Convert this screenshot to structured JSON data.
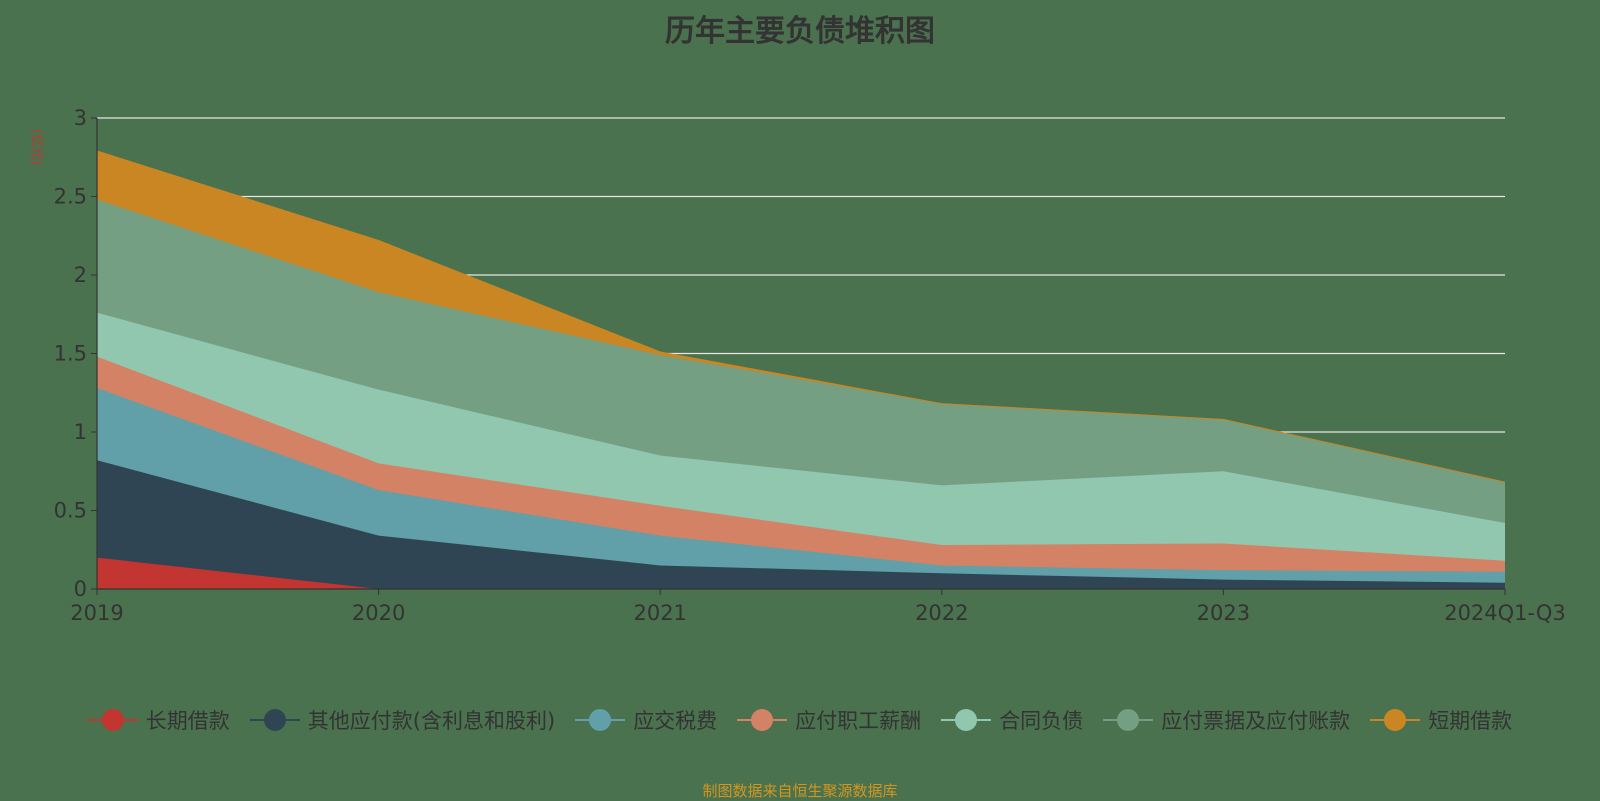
{
  "chart_data": {
    "type": "area",
    "stacked": true,
    "title": "历年主要负债堆积图",
    "ylabel": "(亿元)",
    "xlabel": "",
    "categories": [
      "2019",
      "2020",
      "2021",
      "2022",
      "2023",
      "2024Q1-Q3"
    ],
    "ylim": [
      0,
      3
    ],
    "yticks": [
      "0",
      "0.5",
      "1",
      "1.5",
      "2",
      "2.5",
      "3"
    ],
    "grid": true,
    "legend_position": "bottom",
    "series": [
      {
        "name": "长期借款",
        "color": "#c23531",
        "values": [
          0.2,
          0,
          0,
          0,
          0,
          0
        ]
      },
      {
        "name": "其他应付款(含利息和股利)",
        "color": "#2f4554",
        "values": [
          0.62,
          0.34,
          0.15,
          0.1,
          0.06,
          0.04
        ]
      },
      {
        "name": "应交税费",
        "color": "#61a0a8",
        "values": [
          0.46,
          0.29,
          0.19,
          0.05,
          0.06,
          0.07
        ]
      },
      {
        "name": "应付职工薪酬",
        "color": "#d48265",
        "values": [
          0.2,
          0.17,
          0.19,
          0.13,
          0.17,
          0.07
        ]
      },
      {
        "name": "合同负债",
        "color": "#91c7ae",
        "values": [
          0.28,
          0.47,
          0.32,
          0.38,
          0.46,
          0.24
        ]
      },
      {
        "name": "应付票据及应付账款",
        "color": "#749f83",
        "values": [
          0.72,
          0.62,
          0.64,
          0.52,
          0.33,
          0.26
        ]
      },
      {
        "name": "短期借款",
        "color": "#ca8622",
        "values": [
          0.31,
          0.33,
          0.02,
          0,
          0,
          0
        ]
      }
    ]
  },
  "footer": "制图数据来自恒生聚源数据库"
}
